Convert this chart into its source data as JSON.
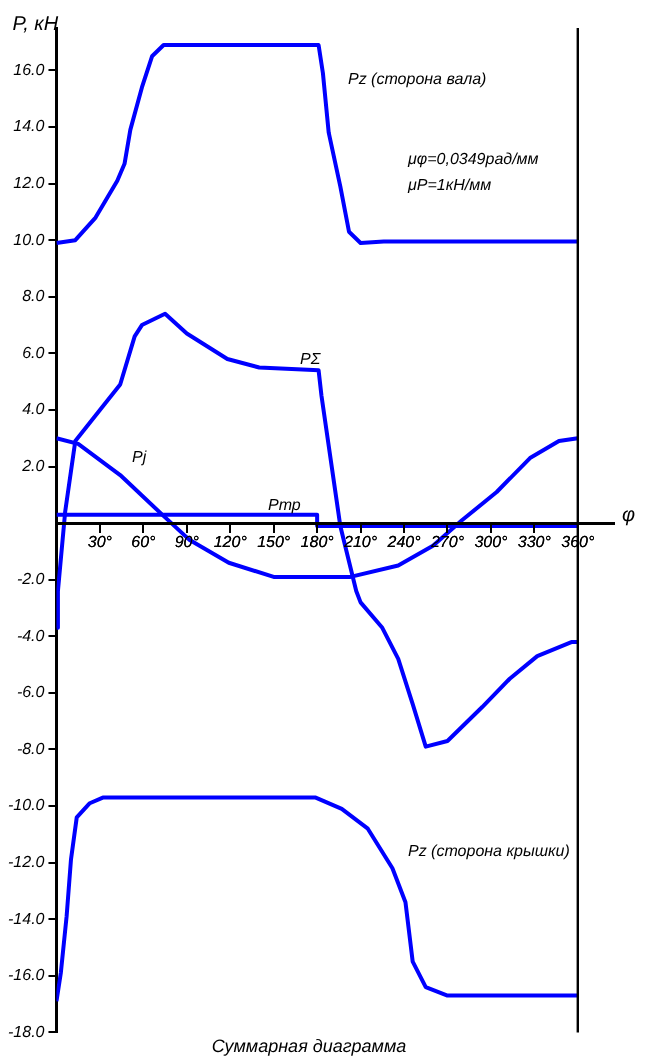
{
  "chart_data": {
    "type": "line",
    "title": "Суммарная диаграмма",
    "ylabel": "P, кН",
    "xlabel": "φ",
    "xlim": [
      0,
      385
    ],
    "ylim": [
      -18,
      17.5
    ],
    "xticks": [
      {
        "value": 30,
        "label": "30°"
      },
      {
        "value": 60,
        "label": "60°"
      },
      {
        "value": 90,
        "label": "90°"
      },
      {
        "value": 120,
        "label": "120°"
      },
      {
        "value": 150,
        "label": "150°"
      },
      {
        "value": 180,
        "label": "180°"
      },
      {
        "value": 210,
        "label": "210°"
      },
      {
        "value": 240,
        "label": "240°"
      },
      {
        "value": 270,
        "label": "270°"
      },
      {
        "value": 300,
        "label": "300°"
      },
      {
        "value": 330,
        "label": "330°"
      },
      {
        "value": 360,
        "label": "360°"
      }
    ],
    "yticks": [
      {
        "value": 16,
        "label": "16.0"
      },
      {
        "value": 14,
        "label": "14.0"
      },
      {
        "value": 12,
        "label": "12.0"
      },
      {
        "value": 10,
        "label": "10.0"
      },
      {
        "value": 8,
        "label": "8.0"
      },
      {
        "value": 6,
        "label": "6.0"
      },
      {
        "value": 4,
        "label": "4.0"
      },
      {
        "value": 2,
        "label": "2.0"
      },
      {
        "value": -2,
        "label": "-2.0"
      },
      {
        "value": -4,
        "label": "-4.0"
      },
      {
        "value": -6,
        "label": "-6.0"
      },
      {
        "value": -8,
        "label": "-8.0"
      },
      {
        "value": -10,
        "label": "-10.0"
      },
      {
        "value": -12,
        "label": "-12.0"
      },
      {
        "value": -14,
        "label": "-14.0"
      },
      {
        "value": -16,
        "label": "-16.0"
      },
      {
        "value": -18,
        "label": "-18.0"
      }
    ],
    "grid": false,
    "legend": false,
    "marker": "none",
    "line_style": "solid",
    "series": [
      {
        "color": "#0000ff",
        "x": [
          0,
          13,
          27,
          42,
          47,
          51,
          59,
          66,
          74,
          181,
          184,
          188,
          196,
          202,
          210,
          226,
          360
        ],
        "values": [
          9.9,
          10.0,
          10.8,
          12.1,
          12.7,
          13.9,
          15.4,
          16.5,
          16.9,
          16.9,
          15.9,
          13.8,
          11.9,
          10.3,
          9.9,
          9.95,
          9.95
        ]
      },
      {
        "color": "#0000ff",
        "x": [
          0,
          1,
          6,
          13,
          30,
          44,
          54,
          59,
          75,
          90,
          118,
          140,
          181,
          183,
          196,
          207,
          210,
          225,
          236,
          246,
          255,
          270,
          294,
          313,
          332,
          356,
          360
        ],
        "values": [
          -3.7,
          -2.4,
          0.4,
          2.9,
          4.0,
          4.9,
          6.6,
          7.0,
          7.4,
          6.7,
          5.8,
          5.5,
          5.4,
          4.5,
          -0.1,
          -2.4,
          -2.8,
          -3.7,
          -4.8,
          -6.4,
          -7.9,
          -7.7,
          -6.5,
          -5.5,
          -4.7,
          -4.2,
          -4.2
        ]
      },
      {
        "color": "#0000ff",
        "x": [
          0,
          15,
          44,
          73,
          92,
          119,
          150,
          203,
          236,
          260,
          280,
          304,
          327,
          347,
          360
        ],
        "values": [
          3.0,
          2.8,
          1.7,
          0.3,
          -0.6,
          -1.4,
          -1.9,
          -1.9,
          -1.5,
          -0.8,
          0.1,
          1.1,
          2.3,
          2.9,
          3.0
        ]
      },
      {
        "color": "#0000ff",
        "x": [
          0,
          180,
          180,
          360
        ],
        "values": [
          0.3,
          0.3,
          -0.1,
          -0.1
        ]
      },
      {
        "color": "#0000ff",
        "x": [
          0,
          3,
          7,
          10,
          14,
          23,
          32,
          179,
          197,
          215,
          232,
          241,
          246,
          255,
          270,
          284,
          360
        ],
        "values": [
          -16.9,
          -15.9,
          -13.9,
          -11.9,
          -10.4,
          -9.9,
          -9.7,
          -9.7,
          -10.1,
          -10.8,
          -12.2,
          -13.4,
          -15.5,
          -16.4,
          -16.7,
          -16.7,
          -16.7
        ]
      }
    ],
    "ref_lines": [
      {
        "axis": "x",
        "value": 360,
        "color": "#000000"
      }
    ],
    "annotations": [
      "Pz (сторона вала)",
      "PΣ",
      "Pj",
      "Pтр",
      "Pz (сторона крышки)",
      "μφ=0,0349рад/мм",
      "μP=1кН/мм"
    ]
  }
}
